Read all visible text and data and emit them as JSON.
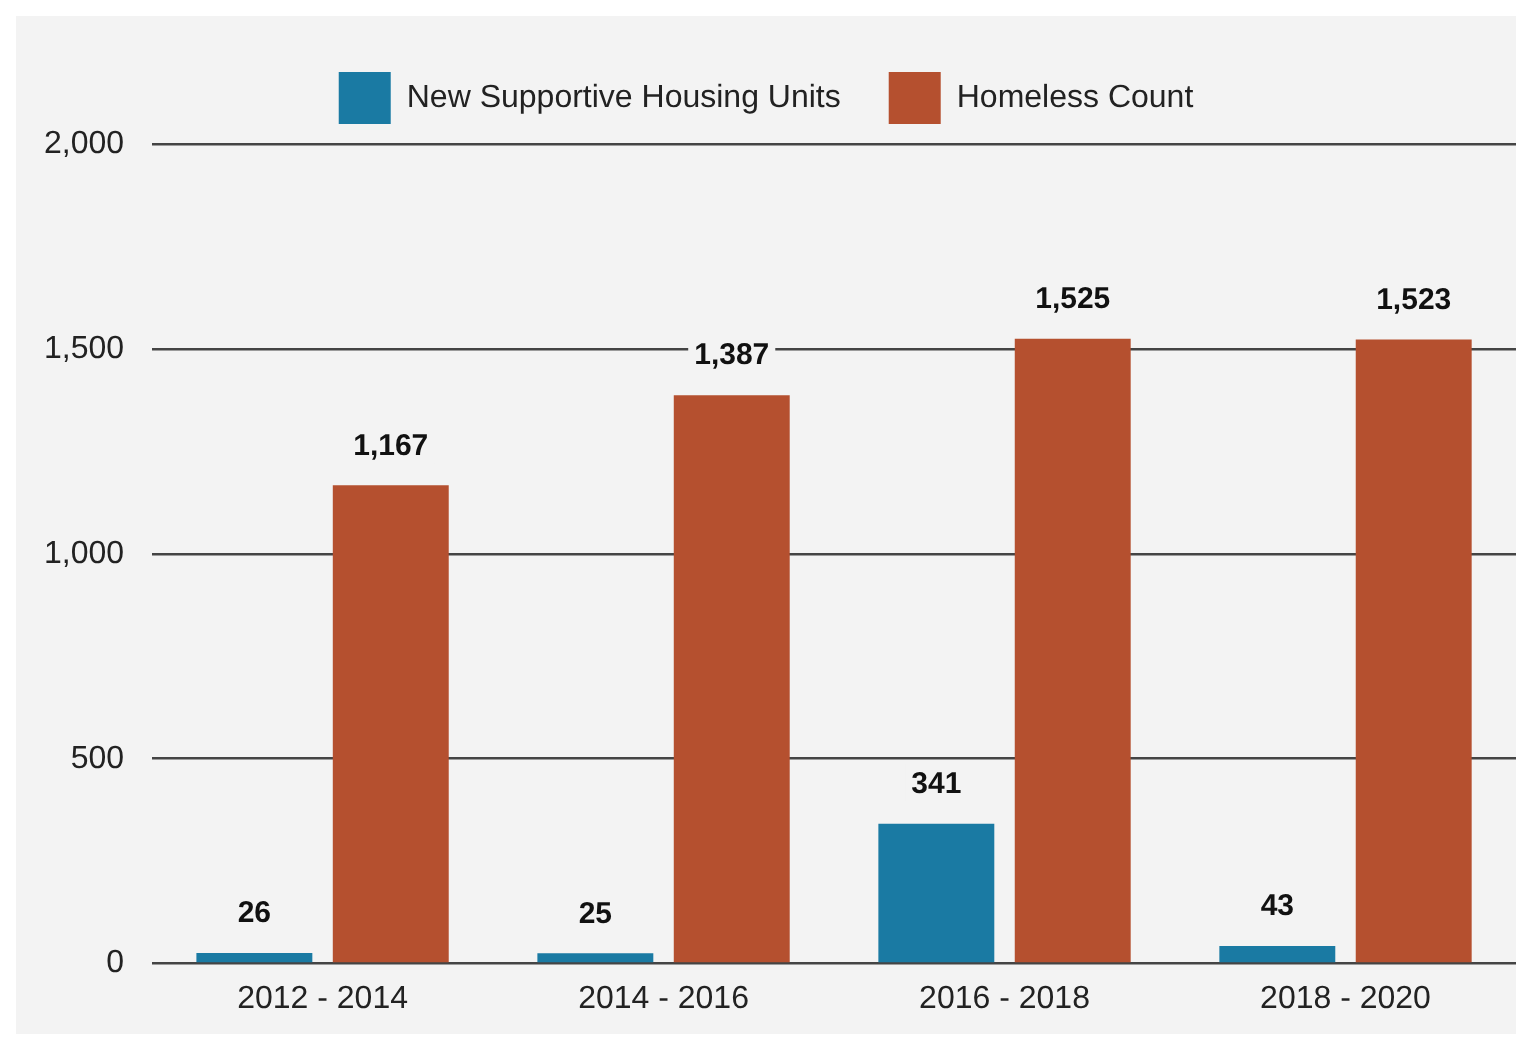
{
  "chart_data": {
    "type": "bar",
    "categories": [
      "2012 - 2014",
      "2014 - 2016",
      "2016 - 2018",
      "2018 - 2020"
    ],
    "series": [
      {
        "name": "New Supportive Housing Units",
        "color": "#1a7aa3",
        "values": [
          26,
          25,
          341,
          43
        ],
        "value_labels": [
          "26",
          "25",
          "341",
          "43"
        ]
      },
      {
        "name": "Homeless Count",
        "color": "#b5502f",
        "values": [
          1167,
          1387,
          1525,
          1523
        ],
        "value_labels": [
          "1,167",
          "1,387",
          "1,525",
          "1,523"
        ]
      }
    ],
    "ylim": [
      0,
      2000
    ],
    "yticks": [
      0,
      {
        "value": 500,
        "label": "500"
      },
      {
        "value": 1000,
        "label": "1,000"
      },
      {
        "value": 1500,
        "label": "1,500"
      },
      {
        "value": 2000,
        "label": "2,000"
      }
    ],
    "grid": "y",
    "legend": "top"
  }
}
